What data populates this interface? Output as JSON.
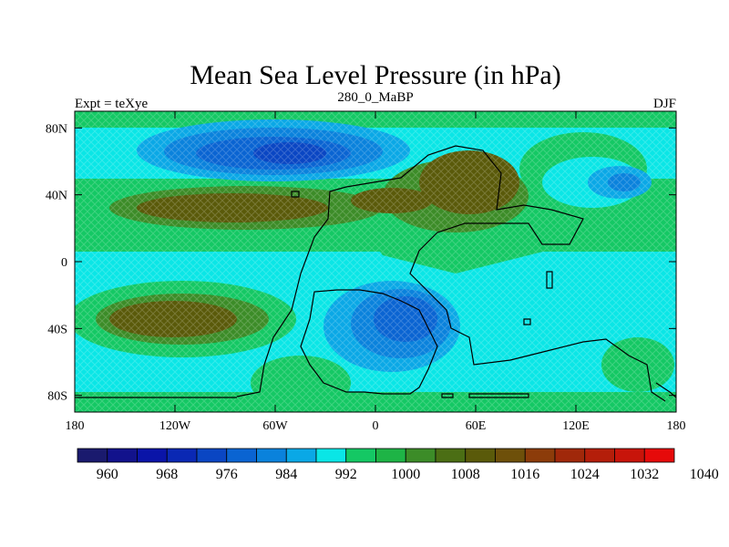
{
  "title": "Mean Sea Level Pressure (in hPa)",
  "left_label": "Expt = teXye",
  "center_label": "280_0_MaBP",
  "right_label": "DJF",
  "lon_ticks": [
    {
      "value": -180,
      "label": "180"
    },
    {
      "value": -120,
      "label": "120W"
    },
    {
      "value": -60,
      "label": "60W"
    },
    {
      "value": 0,
      "label": "0"
    },
    {
      "value": 60,
      "label": "60E"
    },
    {
      "value": 120,
      "label": "120E"
    },
    {
      "value": 180,
      "label": "180"
    }
  ],
  "lat_ticks": [
    {
      "value": 80,
      "label": "80N"
    },
    {
      "value": 40,
      "label": "40N"
    },
    {
      "value": 0,
      "label": "0"
    },
    {
      "value": -40,
      "label": "40S"
    },
    {
      "value": -80,
      "label": "80S"
    }
  ],
  "lon_range": [
    -180,
    180
  ],
  "lat_range": [
    -90,
    90
  ],
  "colorbar": {
    "colors": [
      "#1a1a6e",
      "#12128c",
      "#0a14a8",
      "#0a28b4",
      "#0a46c3",
      "#0a64d2",
      "#0a82dc",
      "#0aa8e6",
      "#0ae6e6",
      "#14c864",
      "#1eb446",
      "#3c8c28",
      "#4b6e14",
      "#5a5a0a",
      "#6e500a",
      "#8c3c0a",
      "#a0280a",
      "#b41e0a",
      "#c8140a",
      "#e60a0a"
    ],
    "labels": [
      "960",
      "968",
      "976",
      "984",
      "992",
      "1000",
      "1008",
      "1016",
      "1024",
      "1032",
      "1040"
    ]
  },
  "chart_data": {
    "type": "heatmap",
    "variable": "Mean Sea Level Pressure",
    "units": "hPa",
    "season": "DJF",
    "contour_interval": 4,
    "value_range": [
      960,
      1040
    ],
    "features": [
      {
        "name": "low",
        "lon": -75,
        "lat": 65,
        "value": 976
      },
      {
        "name": "low",
        "lon": 30,
        "lat": -40,
        "value": 984
      },
      {
        "name": "low",
        "lon": 150,
        "lat": 48,
        "value": 992
      },
      {
        "name": "high",
        "lon": -100,
        "lat": 30,
        "value": 1020
      },
      {
        "name": "high",
        "lon": -120,
        "lat": -35,
        "value": 1020
      },
      {
        "name": "high",
        "lon": 58,
        "lat": 45,
        "value": 1024
      },
      {
        "name": "high",
        "lon": -20,
        "lat": 32,
        "value": 1016
      }
    ]
  }
}
